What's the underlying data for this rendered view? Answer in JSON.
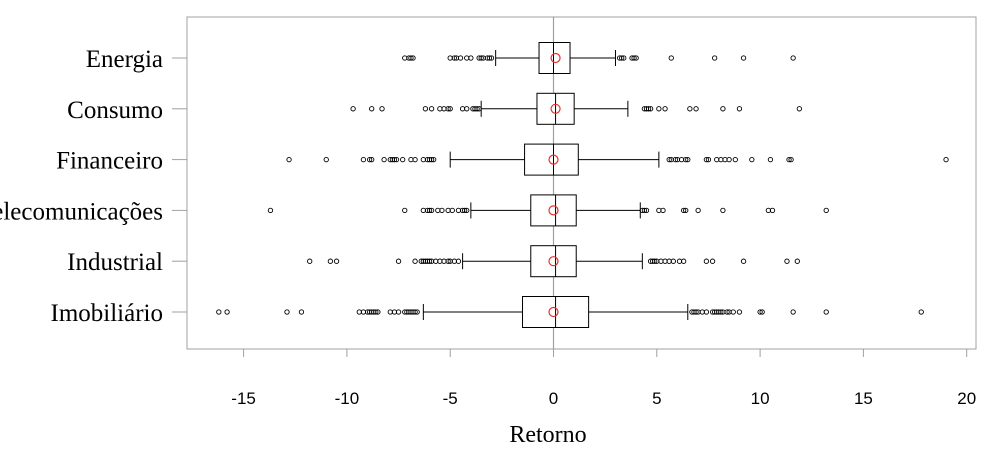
{
  "chart_data": {
    "type": "boxplot",
    "xlabel": "Retorno",
    "ylabel": "",
    "title": "",
    "xlim": [
      -17.5,
      20.7
    ],
    "xticks": [
      -15,
      -10,
      -5,
      0,
      5,
      10,
      15,
      20
    ],
    "xtick_labels": [
      "-15",
      "-10",
      "-5",
      "0",
      "5",
      "10",
      "15",
      "20"
    ],
    "grid": false,
    "reference_line_x": 0,
    "colors": {
      "box": "#000000",
      "mean_marker": "#e8302c",
      "zero_line": "#a0a0a0",
      "frame": "#a0a0a0"
    },
    "categories": [
      "Energia",
      "Consumo",
      "Financeiro",
      "Telecomunicações",
      "Industrial",
      "Imobiliário"
    ],
    "series": [
      {
        "category": "Energia",
        "q1": -0.7,
        "median": 0.0,
        "q3": 0.8,
        "whisker_low": -2.8,
        "whisker_high": 3.0,
        "mean": 0.1,
        "outliers": [
          -7.2,
          -7.0,
          -6.9,
          -6.8,
          -5.0,
          -4.8,
          -4.7,
          -4.5,
          -4.2,
          -4.0,
          -3.6,
          -3.5,
          -3.4,
          -3.2,
          -3.1,
          -3.0,
          3.2,
          3.3,
          3.4,
          3.8,
          3.9,
          4.0,
          5.7,
          7.8,
          9.2,
          11.6
        ]
      },
      {
        "category": "Consumo",
        "q1": -0.8,
        "median": 0.1,
        "q3": 1.0,
        "whisker_low": -3.5,
        "whisker_high": 3.6,
        "mean": 0.1,
        "outliers": [
          -9.7,
          -8.8,
          -8.3,
          -6.2,
          -5.9,
          -5.5,
          -5.3,
          -5.1,
          -5.0,
          -4.4,
          -4.2,
          -3.9,
          -3.8,
          -3.7,
          -3.6,
          4.4,
          4.5,
          4.6,
          4.7,
          5.1,
          5.4,
          6.6,
          6.9,
          8.2,
          9.0,
          11.9
        ]
      },
      {
        "category": "Financeiro",
        "q1": -1.4,
        "median": 0.0,
        "q3": 1.2,
        "whisker_low": -5.0,
        "whisker_high": 5.1,
        "mean": 0.0,
        "outliers": [
          -12.8,
          -11.0,
          -9.2,
          -8.9,
          -8.8,
          -8.2,
          -7.9,
          -7.8,
          -7.7,
          -7.6,
          -7.3,
          -6.9,
          -6.7,
          -6.3,
          -6.1,
          -6.0,
          -5.9,
          -5.8,
          5.6,
          5.7,
          5.9,
          6.0,
          6.2,
          6.4,
          6.5,
          7.4,
          7.5,
          7.9,
          8.1,
          8.3,
          8.5,
          8.8,
          9.6,
          10.5,
          11.4,
          11.5,
          19.0
        ]
      },
      {
        "category": "Telecomunicações",
        "q1": -1.1,
        "median": 0.1,
        "q3": 1.1,
        "whisker_low": -4.0,
        "whisker_high": 4.2,
        "mean": 0.0,
        "outliers": [
          -13.7,
          -7.2,
          -6.3,
          -6.1,
          -6.0,
          -5.9,
          -5.6,
          -5.4,
          -5.1,
          -4.9,
          -4.6,
          -4.4,
          -4.3,
          -4.2,
          4.3,
          4.4,
          4.5,
          5.1,
          5.3,
          6.3,
          6.4,
          7.0,
          8.2,
          10.4,
          10.6,
          13.2
        ]
      },
      {
        "category": "Industrial",
        "q1": -1.1,
        "median": 0.1,
        "q3": 1.1,
        "whisker_low": -4.4,
        "whisker_high": 4.3,
        "mean": 0.0,
        "outliers": [
          -11.8,
          -10.8,
          -10.5,
          -7.5,
          -6.7,
          -6.4,
          -6.3,
          -6.2,
          -6.1,
          -6.0,
          -5.9,
          -5.7,
          -5.5,
          -5.3,
          -5.1,
          -5.0,
          -4.8,
          -4.6,
          4.7,
          4.8,
          4.9,
          5.0,
          5.2,
          5.4,
          5.6,
          5.8,
          6.1,
          6.3,
          7.4,
          7.7,
          9.2,
          11.3,
          11.8
        ]
      },
      {
        "category": "Imobiliário",
        "q1": -1.5,
        "median": 0.1,
        "q3": 1.7,
        "whisker_low": -6.3,
        "whisker_high": 6.5,
        "mean": 0.0,
        "outliers": [
          -16.2,
          -15.8,
          -12.9,
          -12.2,
          -9.4,
          -9.2,
          -9.0,
          -8.9,
          -8.8,
          -8.7,
          -8.6,
          -8.5,
          -7.9,
          -7.7,
          -7.5,
          -7.2,
          -7.1,
          -7.0,
          -6.9,
          -6.8,
          -6.7,
          -6.6,
          6.7,
          6.8,
          6.9,
          7.0,
          7.2,
          7.4,
          7.7,
          7.8,
          7.9,
          8.0,
          8.1,
          8.2,
          8.4,
          8.5,
          8.7,
          9.0,
          10.0,
          10.1,
          11.6,
          13.2,
          17.8
        ]
      }
    ]
  }
}
